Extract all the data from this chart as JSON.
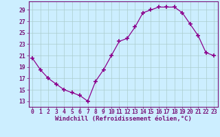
{
  "hours": [
    0,
    1,
    2,
    3,
    4,
    5,
    6,
    7,
    8,
    9,
    10,
    11,
    12,
    13,
    14,
    15,
    16,
    17,
    18,
    19,
    20,
    21,
    22,
    23
  ],
  "values": [
    20.5,
    18.5,
    17.0,
    16.0,
    15.0,
    14.5,
    14.0,
    13.0,
    16.5,
    18.5,
    21.0,
    23.5,
    24.0,
    26.0,
    28.5,
    29.0,
    29.5,
    29.5,
    29.5,
    28.5,
    26.5,
    24.5,
    21.5,
    21.0
  ],
  "line_color": "#8b008b",
  "marker": "+",
  "marker_size": 4,
  "bg_color": "#cceeff",
  "grid_color": "#aacccc",
  "xlabel": "Windchill (Refroidissement éolien,°C)",
  "xlabel_fontsize": 6.5,
  "ytick_labels": [
    "13",
    "15",
    "17",
    "19",
    "21",
    "23",
    "25",
    "27",
    "29"
  ],
  "ytick_values": [
    13,
    15,
    17,
    19,
    21,
    23,
    25,
    27,
    29
  ],
  "ylim": [
    12.0,
    30.5
  ],
  "xlim": [
    -0.5,
    23.5
  ],
  "tick_fontsize": 5.8,
  "tick_color": "#771177",
  "axis_color": "#771177"
}
